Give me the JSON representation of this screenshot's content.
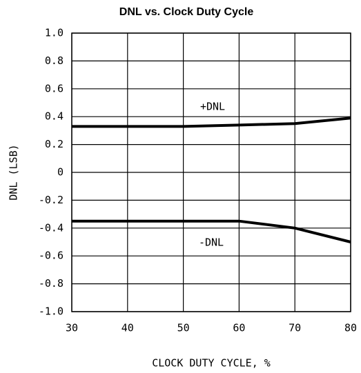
{
  "chart_data": {
    "type": "line",
    "title": "DNL vs. Clock Duty Cycle",
    "x_label": "CLOCK DUTY CYCLE, %",
    "y_label": "DNL (LSB)",
    "xlim": [
      30,
      80
    ],
    "xticks": [
      30,
      40,
      50,
      60,
      70,
      80
    ],
    "ylim": [
      -1,
      1
    ],
    "yticks": [
      {
        "value": -1,
        "label": "-1.0"
      },
      -0.8,
      -0.6,
      -0.4,
      -0.2,
      0,
      0.2,
      0.4,
      0.6,
      0.8,
      {
        "value": 1,
        "label": "1.0"
      }
    ],
    "grid": true,
    "series": [
      {
        "name": "+DNL",
        "color": "#000000",
        "x": [
          30,
          50,
          60,
          70,
          80
        ],
        "values": [
          0.33,
          0.33,
          0.34,
          0.35,
          0.39
        ]
      },
      {
        "name": "-DNL",
        "color": "#000000",
        "x": [
          30,
          60,
          70,
          80
        ],
        "values": [
          -0.35,
          -0.35,
          -0.4,
          -0.5
        ]
      }
    ]
  }
}
